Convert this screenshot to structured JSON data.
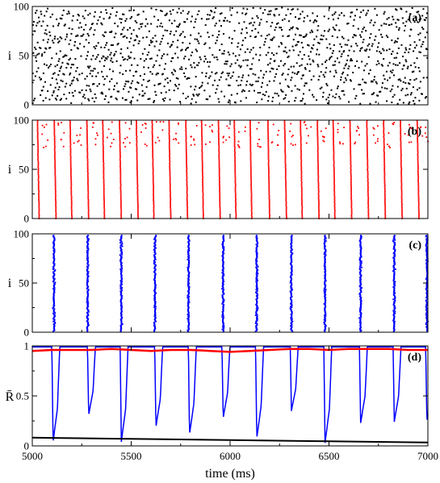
{
  "chart_data": [
    {
      "type": "scatter",
      "panel_label": "(a)",
      "ylabel": "i",
      "ylim": [
        0,
        100
      ],
      "xlim": [
        5000,
        7000
      ],
      "yticks": [
        "0",
        "50",
        "100"
      ],
      "color": "#000000",
      "pattern": "asynchronous spiking: points spread uniformly in time, diagonal striping",
      "drift_period_ms": 165
    },
    {
      "type": "scatter",
      "panel_label": "(b)",
      "ylabel": "i",
      "ylim": [
        0,
        100
      ],
      "xlim": [
        5000,
        7000
      ],
      "yticks": [
        "0",
        "50",
        "100"
      ],
      "color": "#ff0000",
      "burst_times_ms": [
        5035,
        5120,
        5200,
        5285,
        5365,
        5450,
        5535,
        5615,
        5700,
        5785,
        5865,
        5950,
        6030,
        6110,
        6200,
        6285,
        6365,
        6450,
        6530,
        6615,
        6700,
        6785,
        6870,
        6955
      ]
    },
    {
      "type": "scatter",
      "panel_label": "(c)",
      "ylabel": "i",
      "ylim": [
        0,
        100
      ],
      "xlim": [
        5000,
        7000
      ],
      "yticks": [
        "0",
        "50",
        "100"
      ],
      "color": "#0000ff",
      "burst_times_ms": [
        5110,
        5280,
        5450,
        5620,
        5790,
        5965,
        6135,
        6310,
        6480,
        6660,
        6830,
        6995
      ]
    },
    {
      "type": "line",
      "panel_label": "(d)",
      "ylabel": "R̄",
      "xlabel": "time (ms)",
      "ylim": [
        0,
        1
      ],
      "xlim": [
        5000,
        7000
      ],
      "xticks": [
        "5000",
        "5500",
        "6000",
        "6500",
        "7000"
      ],
      "yticks": [
        "0",
        "0.5",
        "1"
      ],
      "series": [
        {
          "color": "#0000ff",
          "baseline": 0.99,
          "dips": [
            {
              "t": 5105,
              "min": 0.04
            },
            {
              "t": 5285,
              "min": 0.31
            },
            {
              "t": 5450,
              "min": 0.04
            },
            {
              "t": 5625,
              "min": 0.19
            },
            {
              "t": 5795,
              "min": 0.12
            },
            {
              "t": 5965,
              "min": 0.28
            },
            {
              "t": 6135,
              "min": 0.08
            },
            {
              "t": 6310,
              "min": 0.35
            },
            {
              "t": 6480,
              "min": 0.03
            },
            {
              "t": 6660,
              "min": 0.23
            },
            {
              "t": 6830,
              "min": 0.24
            },
            {
              "t": 6995,
              "min": 0.25
            }
          ]
        },
        {
          "color": "#ff0000",
          "x": [
            5000,
            5100,
            5200,
            5300,
            5400,
            5500,
            5600,
            5700,
            5800,
            5900,
            6000,
            6100,
            6200,
            6300,
            6400,
            6500,
            6600,
            6700,
            6800,
            6900,
            7000
          ],
          "y": [
            0.95,
            0.96,
            0.96,
            0.96,
            0.97,
            0.96,
            0.95,
            0.96,
            0.96,
            0.95,
            0.94,
            0.95,
            0.96,
            0.97,
            0.97,
            0.96,
            0.97,
            0.97,
            0.97,
            0.96,
            0.96
          ]
        },
        {
          "color": "#000000",
          "x": [
            5000,
            5500,
            6000,
            6500,
            7000
          ],
          "y": [
            0.082,
            0.07,
            0.058,
            0.046,
            0.034
          ]
        }
      ]
    }
  ]
}
